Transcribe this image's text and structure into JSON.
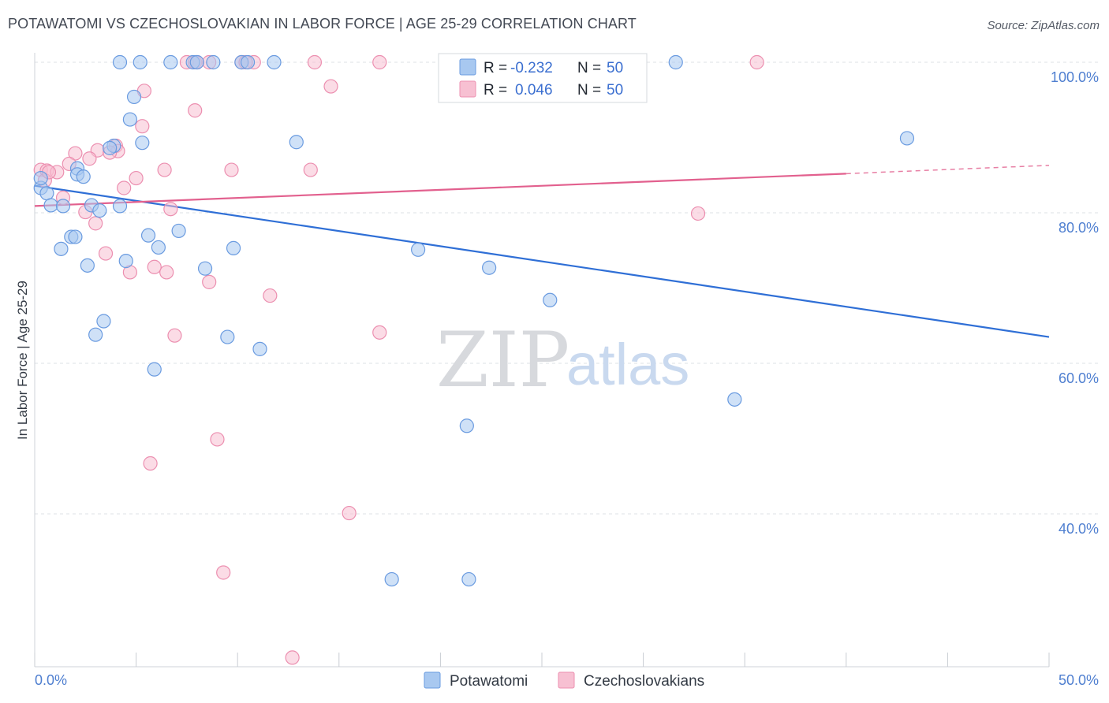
{
  "header": {
    "title": "POTAWATOMI VS CZECHOSLOVAKIAN IN LABOR FORCE | AGE 25-29 CORRELATION CHART",
    "source": "Source: ZipAtlas.com"
  },
  "watermark": {
    "zip": "ZIP",
    "atlas": "atlas"
  },
  "legend": {
    "rows": [
      {
        "r_label": "R =",
        "r_value": "-0.232",
        "n_label": "N =",
        "n_value": "50",
        "color": "#a8c8f0",
        "stroke": "#6a9be0"
      },
      {
        "r_label": "R =",
        "r_value": "0.046",
        "n_label": "N =",
        "n_value": "50",
        "color": "#f7c0d2",
        "stroke": "#ec8fb0"
      }
    ]
  },
  "bottom_legend": [
    {
      "label": "Potawatomi",
      "color": "#a8c8f0",
      "stroke": "#6a9be0"
    },
    {
      "label": "Czechoslovakians",
      "color": "#f7c0d2",
      "stroke": "#ec8fb0"
    }
  ],
  "chart_data": {
    "type": "scatter",
    "title": "POTAWATOMI VS CZECHOSLOVAKIAN IN LABOR FORCE | AGE 25-29 CORRELATION CHART",
    "xlabel": "",
    "ylabel": "In Labor Force | Age 25-29",
    "xlim": [
      0,
      50
    ],
    "ylim": [
      20,
      100
    ],
    "x_tick_labels": [
      "0.0%",
      "50.0%"
    ],
    "y_ticks": [
      {
        "value": 100,
        "label": "100.0%"
      },
      {
        "value": 80,
        "label": "80.0%"
      },
      {
        "value": 60,
        "label": "60.0%"
      },
      {
        "value": 40,
        "label": "40.0%"
      }
    ],
    "grid": true,
    "legend_position": "top-center",
    "series": [
      {
        "name": "Potawatomi",
        "color": "#a8c8f0",
        "stroke": "#6a9be0",
        "trend_color": "#2f6fd6",
        "trend": {
          "x": [
            0,
            50
          ],
          "y": [
            83.6,
            63.5
          ]
        },
        "points": [
          [
            4.2,
            100
          ],
          [
            5.2,
            100
          ],
          [
            6.7,
            100
          ],
          [
            7.8,
            100
          ],
          [
            8.0,
            100
          ],
          [
            8.8,
            100
          ],
          [
            10.2,
            100
          ],
          [
            10.5,
            100
          ],
          [
            11.8,
            100
          ],
          [
            31.6,
            100
          ],
          [
            4.9,
            95.4
          ],
          [
            4.7,
            92.4
          ],
          [
            5.3,
            89.3
          ],
          [
            12.9,
            89.4
          ],
          [
            3.9,
            88.9
          ],
          [
            3.7,
            88.6
          ],
          [
            43.0,
            89.9
          ],
          [
            2.1,
            85.9
          ],
          [
            2.1,
            85.1
          ],
          [
            2.4,
            84.8
          ],
          [
            0.3,
            83.3
          ],
          [
            0.6,
            82.6
          ],
          [
            0.8,
            81.0
          ],
          [
            1.4,
            80.9
          ],
          [
            2.8,
            81.0
          ],
          [
            4.2,
            80.9
          ],
          [
            3.2,
            80.3
          ],
          [
            1.8,
            76.8
          ],
          [
            2.0,
            76.8
          ],
          [
            5.6,
            77.0
          ],
          [
            7.1,
            77.6
          ],
          [
            1.3,
            75.2
          ],
          [
            6.1,
            75.4
          ],
          [
            9.8,
            75.3
          ],
          [
            18.9,
            75.1
          ],
          [
            4.5,
            73.6
          ],
          [
            2.6,
            73.0
          ],
          [
            8.4,
            72.6
          ],
          [
            22.4,
            72.7
          ],
          [
            25.4,
            68.4
          ],
          [
            3.4,
            65.6
          ],
          [
            3.0,
            63.8
          ],
          [
            9.5,
            63.5
          ],
          [
            11.1,
            61.9
          ],
          [
            5.9,
            59.2
          ],
          [
            34.5,
            55.2
          ],
          [
            21.3,
            51.7
          ],
          [
            17.6,
            31.3
          ],
          [
            21.4,
            31.3
          ],
          [
            0.3,
            84.6
          ]
        ]
      },
      {
        "name": "Czechoslovakians",
        "color": "#f7c0d2",
        "stroke": "#ec8fb0",
        "trend_color": "#e2608e",
        "trend": {
          "x": [
            0,
            40
          ],
          "y": [
            80.9,
            85.2
          ]
        },
        "trend_dashed": {
          "x": [
            40,
            50
          ],
          "y": [
            85.2,
            86.3
          ]
        },
        "points": [
          [
            7.5,
            100
          ],
          [
            7.9,
            100
          ],
          [
            8.6,
            100
          ],
          [
            10.2,
            100
          ],
          [
            10.8,
            100
          ],
          [
            13.8,
            100
          ],
          [
            17.0,
            100
          ],
          [
            20.7,
            100
          ],
          [
            35.6,
            100
          ],
          [
            14.6,
            96.8
          ],
          [
            5.4,
            96.2
          ],
          [
            7.9,
            93.6
          ],
          [
            5.3,
            91.5
          ],
          [
            2.0,
            87.9
          ],
          [
            3.1,
            88.3
          ],
          [
            4.0,
            88.9
          ],
          [
            4.1,
            88.2
          ],
          [
            3.7,
            88.0
          ],
          [
            2.7,
            87.2
          ],
          [
            1.7,
            86.5
          ],
          [
            0.3,
            85.7
          ],
          [
            0.6,
            85.6
          ],
          [
            1.1,
            85.4
          ],
          [
            6.4,
            85.7
          ],
          [
            9.7,
            85.7
          ],
          [
            13.6,
            85.7
          ],
          [
            5.0,
            84.6
          ],
          [
            0.5,
            84.3
          ],
          [
            4.4,
            83.3
          ],
          [
            1.4,
            82.0
          ],
          [
            6.7,
            80.5
          ],
          [
            2.5,
            80.1
          ],
          [
            3.0,
            78.6
          ],
          [
            32.7,
            79.9
          ],
          [
            3.5,
            74.6
          ],
          [
            4.7,
            72.1
          ],
          [
            5.9,
            72.8
          ],
          [
            6.5,
            72.1
          ],
          [
            8.6,
            70.8
          ],
          [
            11.6,
            69.0
          ],
          [
            17.0,
            64.1
          ],
          [
            6.9,
            63.7
          ],
          [
            9.0,
            49.9
          ],
          [
            5.7,
            46.7
          ],
          [
            15.5,
            40.1
          ],
          [
            9.3,
            32.2
          ],
          [
            12.7,
            20.9
          ],
          [
            8.0,
            100
          ],
          [
            10.4,
            100
          ],
          [
            0.7,
            85.4
          ]
        ]
      }
    ]
  }
}
